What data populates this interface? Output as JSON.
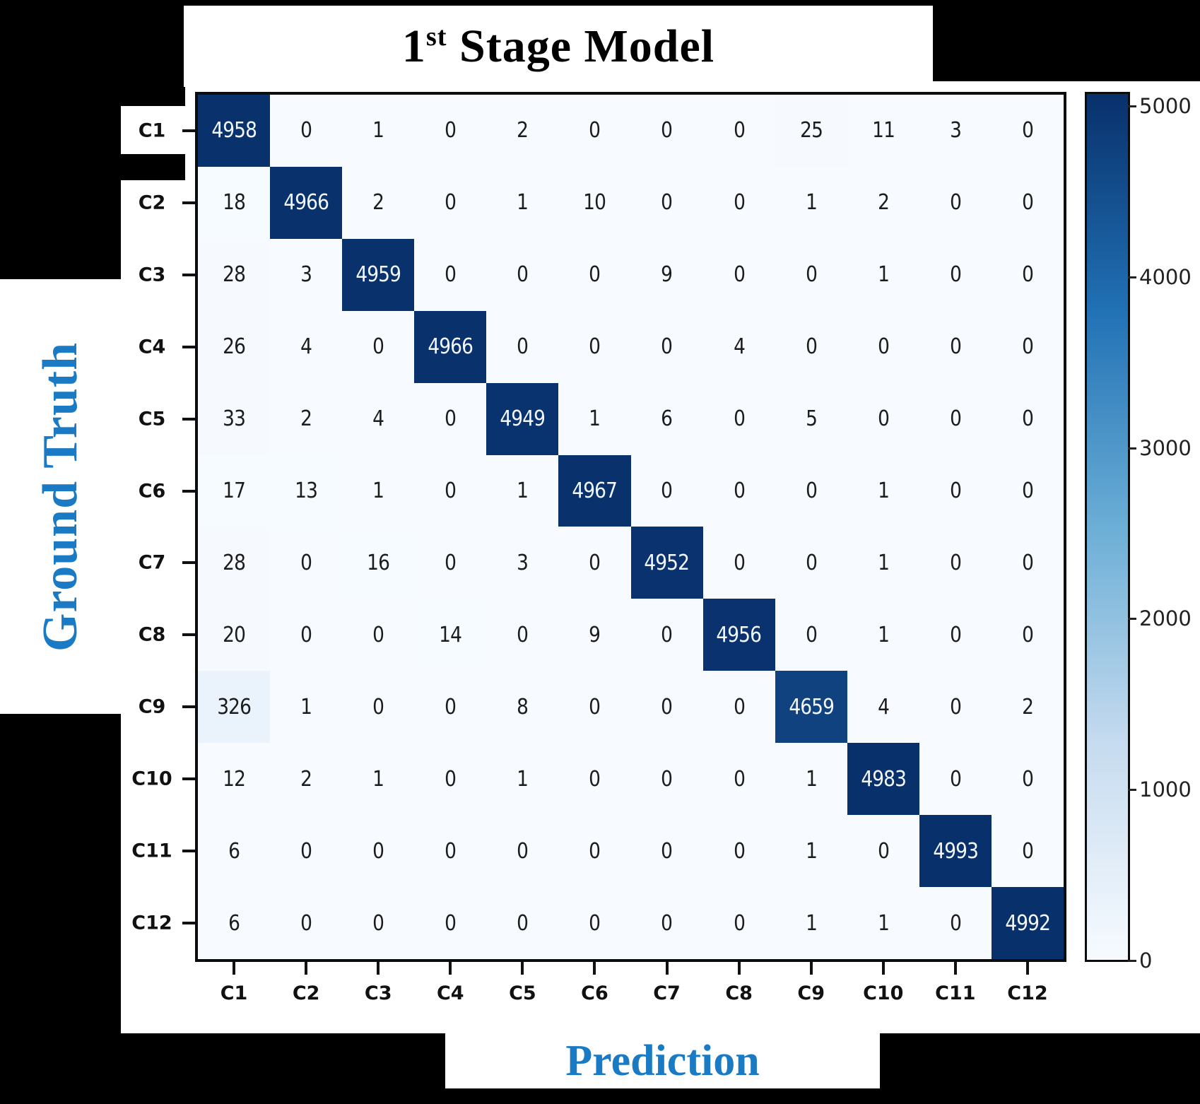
{
  "figure": {
    "title": {
      "number": "1",
      "ordinal_suffix": "st",
      "rest": " Stage Model"
    },
    "x_axis_label": "Prediction",
    "y_axis_label": "Ground Truth",
    "accent_blue": "#1b7ac4"
  },
  "chart_data": {
    "type": "heatmap",
    "subtype": "confusion-matrix",
    "title": "1st Stage Model",
    "xlabel": "Prediction",
    "ylabel": "Ground Truth",
    "x_categories": [
      "C1",
      "C2",
      "C3",
      "C4",
      "C5",
      "C6",
      "C7",
      "C8",
      "C9",
      "C10",
      "C11",
      "C12"
    ],
    "y_categories": [
      "C1",
      "C2",
      "C3",
      "C4",
      "C5",
      "C6",
      "C7",
      "C8",
      "C9",
      "C10",
      "C11",
      "C12"
    ],
    "matrix": [
      [
        4958,
        0,
        1,
        0,
        2,
        0,
        0,
        0,
        25,
        11,
        3,
        0
      ],
      [
        18,
        4966,
        2,
        0,
        1,
        10,
        0,
        0,
        1,
        2,
        0,
        0
      ],
      [
        28,
        3,
        4959,
        0,
        0,
        0,
        9,
        0,
        0,
        1,
        0,
        0
      ],
      [
        26,
        4,
        0,
        4966,
        0,
        0,
        0,
        4,
        0,
        0,
        0,
        0
      ],
      [
        33,
        2,
        4,
        0,
        4949,
        1,
        6,
        0,
        5,
        0,
        0,
        0
      ],
      [
        17,
        13,
        1,
        0,
        1,
        4967,
        0,
        0,
        0,
        1,
        0,
        0
      ],
      [
        28,
        0,
        16,
        0,
        3,
        0,
        4952,
        0,
        0,
        1,
        0,
        0
      ],
      [
        20,
        0,
        0,
        14,
        0,
        9,
        0,
        4956,
        0,
        1,
        0,
        0
      ],
      [
        326,
        1,
        0,
        0,
        8,
        0,
        0,
        0,
        4659,
        4,
        0,
        2
      ],
      [
        12,
        2,
        1,
        0,
        1,
        0,
        0,
        0,
        1,
        4983,
        0,
        0
      ],
      [
        6,
        0,
        0,
        0,
        0,
        0,
        0,
        0,
        1,
        0,
        4993,
        0
      ],
      [
        6,
        0,
        0,
        0,
        0,
        0,
        0,
        0,
        1,
        1,
        0,
        4992
      ]
    ],
    "colorbar": {
      "tick_labels": [
        5000,
        4000,
        3000,
        2000,
        1000,
        0
      ],
      "vmin": 0,
      "vmax": 5000,
      "colormap": "Blues",
      "position": "right"
    },
    "colors": {
      "cmap_high": "#08306b",
      "cmap_low": "#f7fbff"
    },
    "grid": false,
    "legend": false
  }
}
